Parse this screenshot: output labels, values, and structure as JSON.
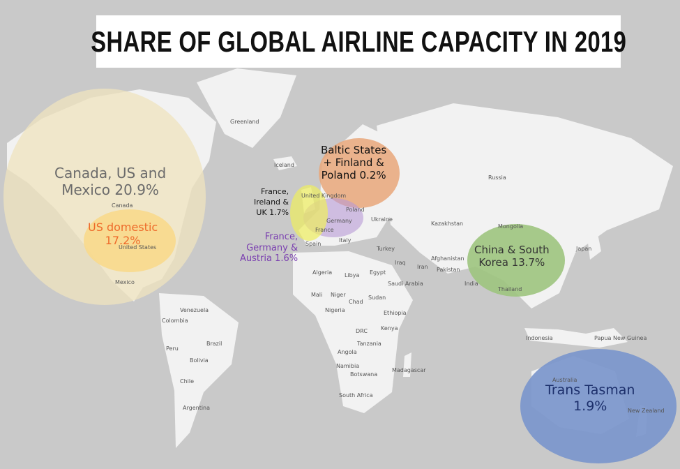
{
  "title": "SHARE OF GLOBAL AIRLINE CAPACITY IN 2019",
  "colors": {
    "ocean": "#c9c9c9",
    "land": "#f2f2f2",
    "north_america": "#efe3bd",
    "us_domestic": "#f8d98c",
    "baltic": "#e9a77a",
    "uk_ireland": "#eeee5e",
    "central_europe": "#b79ad6",
    "china_korea": "#9dc47e",
    "trans_tasman": "#7b96cc"
  },
  "regions": [
    {
      "label": "Canada, US and Mexico 20.9%",
      "line1": "Canada, US and",
      "line2": "Mexico 20.9%",
      "share_pct": 20.9,
      "text_color": "#6b6b6b"
    },
    {
      "label": "US domestic 17.2%",
      "line1": "US domestic",
      "line2": "17.2%",
      "share_pct": 17.2,
      "text_color": "#ee6a2a"
    },
    {
      "label": "Baltic States + Finland & Poland 0.2%",
      "line1": "Baltic States",
      "line2": "+ Finland &",
      "line3": "Poland 0.2%",
      "share_pct": 0.2,
      "text_color": "#111111"
    },
    {
      "label": "France, Ireland & UK 1.7%",
      "line1": "France,",
      "line2": "Ireland &",
      "line3": "UK 1.7%",
      "share_pct": 1.7,
      "text_color": "#111111"
    },
    {
      "label": "France, Germany & Austria 1.6%",
      "line1": "France,",
      "line2": "Germany &",
      "line3": "Austria 1.6%",
      "share_pct": 1.6,
      "text_color": "#7a3fb0"
    },
    {
      "label": "China & South Korea 13.7%",
      "line1": "China & South",
      "line2": "Korea 13.7%",
      "share_pct": 13.7,
      "text_color": "#333333"
    },
    {
      "label": "Trans Tasman 1.9%",
      "line1": "Trans Tasman",
      "line2": "1.9%",
      "share_pct": 1.9,
      "text_color": "#1c2f6b"
    }
  ],
  "country_labels": [
    "Greenland",
    "Iceland",
    "Canada",
    "United States",
    "Mexico",
    "Venezuela",
    "Colombia",
    "Peru",
    "Brazil",
    "Bolivia",
    "Chile",
    "Argentina",
    "United Kingdom",
    "France",
    "Spain",
    "Germany",
    "Poland",
    "Ukraine",
    "Italy",
    "Turkey",
    "Russia",
    "Kazakhstan",
    "Mongolia",
    "Japan",
    "Iraq",
    "Iran",
    "Afghanistan",
    "Pakistan",
    "India",
    "Thailand",
    "Indonesia",
    "Papua New Guinea",
    "Australia",
    "New Zealand",
    "Algeria",
    "Libya",
    "Egypt",
    "Saudi Arabia",
    "Mali",
    "Niger",
    "Chad",
    "Sudan",
    "Nigeria",
    "Ethiopia",
    "DRC",
    "Kenya",
    "Tanzania",
    "Angola",
    "Namibia",
    "Botswana",
    "Madagascar",
    "South Africa"
  ]
}
